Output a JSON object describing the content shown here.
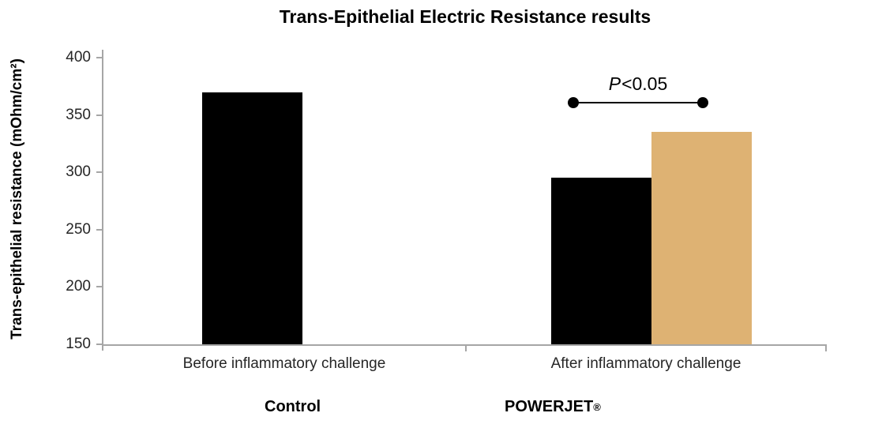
{
  "chart_data": {
    "type": "bar",
    "title": "Trans-Epithelial  Electric Resistance results",
    "ylabel": "Trans-epithelial resistance (mOhm/cm²)",
    "xlabel": "",
    "categories": [
      "Before inflammatory challenge",
      "After inflammatory challenge"
    ],
    "series": [
      {
        "name": "Control",
        "color": "#000000",
        "values": [
          370,
          295
        ]
      },
      {
        "name": "POWERJET®",
        "color": "#deb273",
        "values": [
          null,
          335
        ]
      }
    ],
    "ylim": [
      150,
      400
    ],
    "yticks": [
      400,
      350,
      300,
      250,
      200,
      150
    ],
    "grid": false,
    "legend_position": "bottom",
    "annotation": {
      "p": "P",
      "condition": "<0.05",
      "y_value": 361,
      "spans": "After inflammatory challenge: Control vs POWERJET®"
    }
  },
  "legend": {
    "items": [
      {
        "label": "Control",
        "suffix": "",
        "color": "#000000"
      },
      {
        "label": "POWERJET",
        "suffix": "®",
        "color": "#deb273"
      }
    ]
  },
  "colors": {
    "bar_control": "#000000",
    "bar_powerjet": "#deb273",
    "axis": "#a6a6a6",
    "tick_text": "#262626",
    "title_text": "#000000"
  }
}
